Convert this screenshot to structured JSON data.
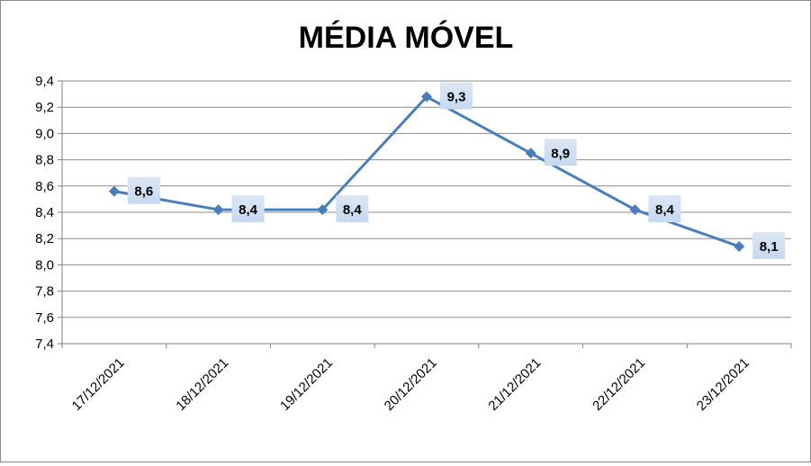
{
  "chart_data": {
    "type": "line",
    "title": "MÉDIA MÓVEL",
    "xlabel": "",
    "ylabel": "",
    "categories": [
      "17/12/2021",
      "18/12/2021",
      "19/12/2021",
      "20/12/2021",
      "21/12/2021",
      "22/12/2021",
      "23/12/2021"
    ],
    "values": [
      8.56,
      8.42,
      8.42,
      9.28,
      8.85,
      8.42,
      8.14
    ],
    "data_labels": [
      "8,6",
      "8,4",
      "8,4",
      "9,3",
      "8,9",
      "8,4",
      "8,1"
    ],
    "ylim": [
      7.4,
      9.4
    ],
    "yticks": [
      "7,4",
      "7,6",
      "7,8",
      "8,0",
      "8,2",
      "8,4",
      "8,6",
      "8,8",
      "9,0",
      "9,2",
      "9,4"
    ],
    "grid": true,
    "legend": "none",
    "colors": {
      "line": "#4a7ebb",
      "marker": "#4a7ebb",
      "label_bg": "#c6d9f1",
      "grid": "#8c8c8c"
    }
  }
}
